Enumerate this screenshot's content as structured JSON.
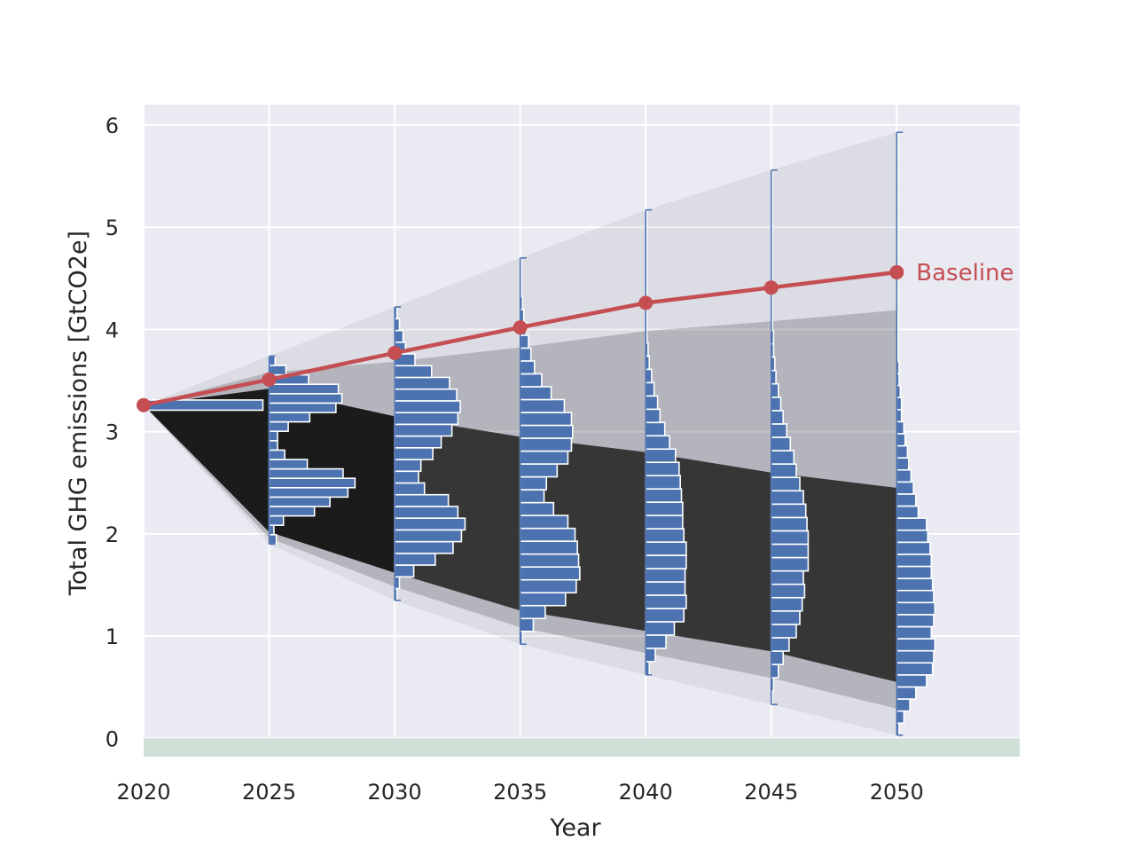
{
  "chart_data": {
    "type": "line",
    "title": "",
    "xlabel": "Year",
    "ylabel": "Total GHG emissions [GtCO2e]",
    "xlim": [
      2020,
      2054.9
    ],
    "ylim": [
      -0.18,
      6.2
    ],
    "xticks": [
      2020,
      2025,
      2030,
      2035,
      2040,
      2045,
      2050
    ],
    "yticks": [
      0,
      1,
      2,
      3,
      4,
      5,
      6
    ],
    "grid": true,
    "colors": {
      "plot_background": "#eaeaf2",
      "grid": "#ffffff",
      "baseline": "#c44e52",
      "histogram": "#4c72b0",
      "trajectories": "#1a1a1a",
      "target_band": "#cfe0d6"
    },
    "baseline": {
      "label": "Baseline",
      "x": [
        2020,
        2025,
        2030,
        2035,
        2040,
        2045,
        2050
      ],
      "y": [
        3.26,
        3.51,
        3.77,
        4.02,
        4.26,
        4.41,
        4.56
      ]
    },
    "target_band": {
      "y_from": -0.18,
      "y_to": 0.0
    },
    "trajectory_envelope": [
      {
        "year": 2020,
        "low": 3.26,
        "high": 3.26,
        "dense_low": 3.26,
        "dense_high": 3.26
      },
      {
        "year": 2025,
        "low": 1.9,
        "high": 3.74,
        "dense_low": 2.02,
        "dense_high": 3.42
      },
      {
        "year": 2030,
        "low": 1.35,
        "high": 4.22,
        "dense_low": 1.62,
        "dense_high": 3.15
      },
      {
        "year": 2035,
        "low": 0.92,
        "high": 4.7,
        "dense_low": 1.25,
        "dense_high": 2.95
      },
      {
        "year": 2040,
        "low": 0.62,
        "high": 5.17,
        "dense_low": 1.05,
        "dense_high": 2.8
      },
      {
        "year": 2045,
        "low": 0.33,
        "high": 5.56,
        "dense_low": 0.85,
        "dense_high": 2.6
      },
      {
        "year": 2050,
        "low": 0.03,
        "high": 5.93,
        "dense_low": 0.55,
        "dense_high": 2.45
      }
    ],
    "distributions": [
      {
        "year": 2020,
        "range": [
          3.26,
          3.26
        ],
        "bins": [
          {
            "y0": 3.21,
            "y1": 3.31,
            "count": 1.0
          }
        ]
      },
      {
        "year": 2025,
        "range": [
          1.9,
          3.74
        ],
        "counts": [
          0.06,
          0.04,
          0.12,
          0.38,
          0.51,
          0.66,
          0.72,
          0.62,
          0.32,
          0.13,
          0.07,
          0.07,
          0.16,
          0.34,
          0.56,
          0.61,
          0.58,
          0.33,
          0.14,
          0.05
        ]
      },
      {
        "year": 2030,
        "range": [
          1.35,
          4.22
        ],
        "counts": [
          0.02,
          0.04,
          0.16,
          0.34,
          0.49,
          0.56,
          0.59,
          0.53,
          0.45,
          0.25,
          0.2,
          0.22,
          0.32,
          0.39,
          0.48,
          0.53,
          0.55,
          0.52,
          0.46,
          0.31,
          0.17,
          0.09,
          0.07,
          0.04,
          0.02
        ]
      },
      {
        "year": 2035,
        "range": [
          0.92,
          4.7
        ],
        "counts": [
          0.02,
          0.11,
          0.21,
          0.38,
          0.47,
          0.5,
          0.49,
          0.48,
          0.46,
          0.4,
          0.28,
          0.2,
          0.22,
          0.31,
          0.4,
          0.43,
          0.44,
          0.43,
          0.37,
          0.26,
          0.18,
          0.12,
          0.09,
          0.07,
          0.05,
          0.03,
          0.02,
          0.01,
          0.01,
          0.01
        ]
      },
      {
        "year": 2040,
        "range": [
          0.62,
          5.17
        ],
        "counts": [
          0.03,
          0.08,
          0.17,
          0.24,
          0.32,
          0.34,
          0.33,
          0.33,
          0.34,
          0.34,
          0.32,
          0.31,
          0.31,
          0.3,
          0.29,
          0.28,
          0.25,
          0.2,
          0.16,
          0.12,
          0.1,
          0.07,
          0.05,
          0.03,
          0.02,
          0.01,
          0.01,
          0.01,
          0.01,
          0.01,
          0.01,
          0.01,
          0.01,
          0.01,
          0.01
        ]
      },
      {
        "year": 2045,
        "range": [
          0.33,
          5.56
        ],
        "counts": [
          0.01,
          0.02,
          0.06,
          0.1,
          0.15,
          0.21,
          0.24,
          0.26,
          0.28,
          0.27,
          0.31,
          0.31,
          0.31,
          0.3,
          0.29,
          0.27,
          0.24,
          0.21,
          0.19,
          0.16,
          0.13,
          0.1,
          0.08,
          0.06,
          0.04,
          0.03,
          0.02,
          0.02,
          0.01,
          0.01,
          0.01,
          0.01,
          0.01,
          0.01,
          0.01,
          0.01,
          0.01,
          0.01,
          0.01,
          0.01
        ]
      },
      {
        "year": 2050,
        "range": [
          0.03,
          5.93
        ],
        "counts": [
          0.02,
          0.06,
          0.11,
          0.16,
          0.25,
          0.3,
          0.31,
          0.32,
          0.29,
          0.31,
          0.32,
          0.31,
          0.3,
          0.29,
          0.29,
          0.28,
          0.26,
          0.25,
          0.18,
          0.16,
          0.14,
          0.12,
          0.1,
          0.09,
          0.07,
          0.06,
          0.04,
          0.04,
          0.03,
          0.02,
          0.02,
          0.01,
          0.01,
          0.01,
          0.01,
          0.01,
          0.01,
          0.01,
          0.01,
          0.01,
          0.01,
          0.01,
          0.01,
          0.01,
          0.01,
          0.01,
          0.01,
          0.01,
          0.01,
          0.01
        ]
      }
    ]
  }
}
